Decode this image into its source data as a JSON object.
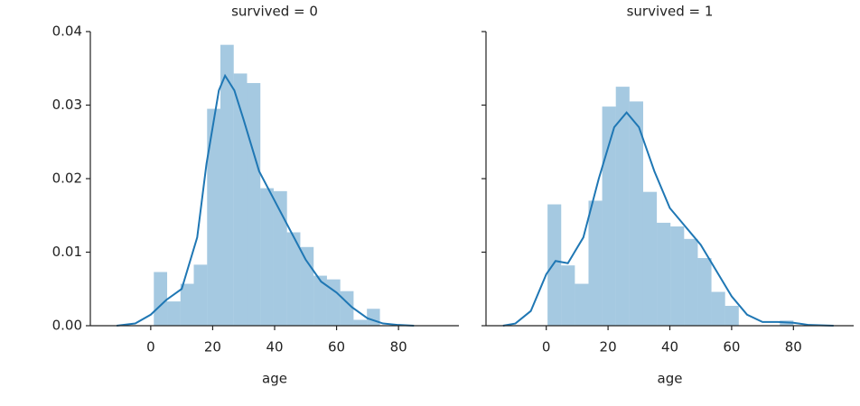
{
  "chart_data": [
    {
      "type": "histogram",
      "title": "survived = 0",
      "x_label": "age",
      "color": "#1f77b4",
      "bins": [
        1,
        5.3,
        9.6,
        13.9,
        18.2,
        22.5,
        26.8,
        31.1,
        35.4,
        39.7,
        44,
        48.3,
        52.6,
        56.9,
        61.2,
        65.5,
        69.8,
        74
      ],
      "values": [
        0.0073,
        0.0033,
        0.0057,
        0.0083,
        0.0295,
        0.0382,
        0.0343,
        0.033,
        0.0187,
        0.0183,
        0.0127,
        0.0107,
        0.0068,
        0.0063,
        0.0047,
        0.0008,
        0.0023
      ],
      "kde": {
        "x": [
          -11,
          -5,
          0,
          5,
          10,
          15,
          18,
          22,
          24,
          27,
          30,
          35,
          40,
          45,
          50,
          55,
          60,
          65,
          70,
          75,
          80,
          85
        ],
        "values": [
          0,
          0.0003,
          0.0015,
          0.0035,
          0.005,
          0.012,
          0.022,
          0.032,
          0.034,
          0.032,
          0.028,
          0.021,
          0.017,
          0.013,
          0.009,
          0.006,
          0.0045,
          0.0025,
          0.001,
          0.0003,
          0.0001,
          0
        ]
      },
      "xlim": [
        -19.5,
        99.5
      ],
      "ylim": [
        0,
        0.04
      ],
      "xticks": [
        0,
        20,
        40,
        60,
        80
      ],
      "yticks": [
        {
          "value": 0,
          "label": "0.00"
        },
        {
          "value": 0.01,
          "label": "0.01"
        },
        {
          "value": 0.02,
          "label": "0.02"
        },
        {
          "value": 0.03,
          "label": "0.03"
        },
        {
          "value": 0.04,
          "label": "0.04"
        }
      ]
    },
    {
      "type": "histogram",
      "title": "survived = 1",
      "x_label": "age",
      "color": "#1f77b4",
      "bins": [
        0.42,
        4.84,
        9.26,
        13.68,
        18.1,
        22.52,
        26.94,
        31.37,
        35.79,
        40.21,
        44.63,
        49.05,
        53.47,
        57.89,
        62.31,
        66.73,
        71.16,
        75.58,
        80
      ],
      "values": [
        0.0165,
        0.0082,
        0.0057,
        0.017,
        0.0298,
        0.0325,
        0.0305,
        0.0182,
        0.014,
        0.0135,
        0.0118,
        0.0092,
        0.0046,
        0.0027,
        0,
        0,
        0,
        0.0007
      ],
      "kde": {
        "x": [
          -14,
          -10,
          -5,
          0,
          3,
          7,
          12,
          17,
          22,
          26,
          30,
          35,
          40,
          45,
          50,
          55,
          60,
          65,
          70,
          75,
          80,
          85,
          93
        ],
        "values": [
          0,
          0.0003,
          0.002,
          0.007,
          0.0088,
          0.0085,
          0.012,
          0.02,
          0.027,
          0.029,
          0.027,
          0.021,
          0.016,
          0.0135,
          0.011,
          0.0075,
          0.004,
          0.0015,
          0.0005,
          0.0005,
          0.0004,
          0.0001,
          0
        ]
      },
      "xlim": [
        -19.5,
        99.5
      ],
      "ylim": [
        0,
        0.04
      ],
      "xticks": [
        0,
        20,
        40,
        60,
        80
      ]
    }
  ]
}
